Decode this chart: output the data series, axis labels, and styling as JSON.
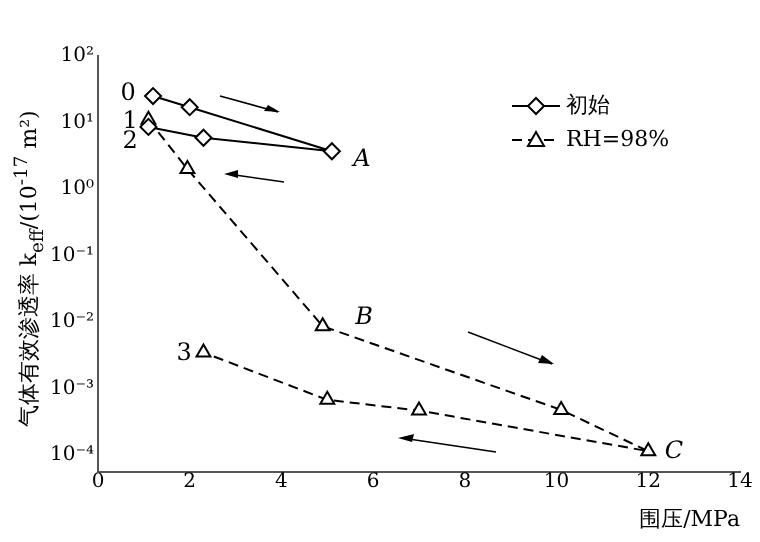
{
  "chart_data": {
    "type": "line",
    "xlabel": "围压/MPa",
    "ylabel": "气体有效渗透率 k$_{eff}$/(10$^{-17}$ m²)",
    "xlim": [
      0,
      14
    ],
    "xticks": [
      0,
      2,
      4,
      6,
      8,
      10,
      12,
      14
    ],
    "ylim": [
      5.6e-05,
      100
    ],
    "log": "y",
    "yticks": [
      {
        "value": 0.0001,
        "label": "10⁻⁴"
      },
      {
        "value": 0.001,
        "label": "10⁻³"
      },
      {
        "value": 0.01,
        "label": "10⁻²"
      },
      {
        "value": 0.1,
        "label": "10⁻¹"
      },
      {
        "value": 1,
        "label": "10⁰"
      },
      {
        "value": 10,
        "label": "10¹"
      },
      {
        "value": 100,
        "label": "10²"
      }
    ],
    "grid": false,
    "legend": "top right",
    "series": [
      {
        "name": "初始",
        "color": "#000000",
        "marker": "diamond",
        "line_style": "solid",
        "x": [
          1.2,
          2,
          5.1,
          2.3,
          1.1
        ],
        "values": [
          25,
          17,
          3.7,
          5.9,
          8.6
        ]
      },
      {
        "name": "RH=98%",
        "color": "#000000",
        "marker": "triangle",
        "line_style": "dashed",
        "x": [
          1.1,
          1.95,
          4.9,
          10.1,
          12,
          7,
          5,
          2.3
        ],
        "values": [
          11,
          2,
          0.0087,
          0.00048,
          0.000115,
          0.00047,
          0.00068,
          0.0035
        ]
      }
    ],
    "annotations": [
      "0",
      "1",
      "2",
      "3",
      "A",
      "B",
      "C"
    ]
  }
}
